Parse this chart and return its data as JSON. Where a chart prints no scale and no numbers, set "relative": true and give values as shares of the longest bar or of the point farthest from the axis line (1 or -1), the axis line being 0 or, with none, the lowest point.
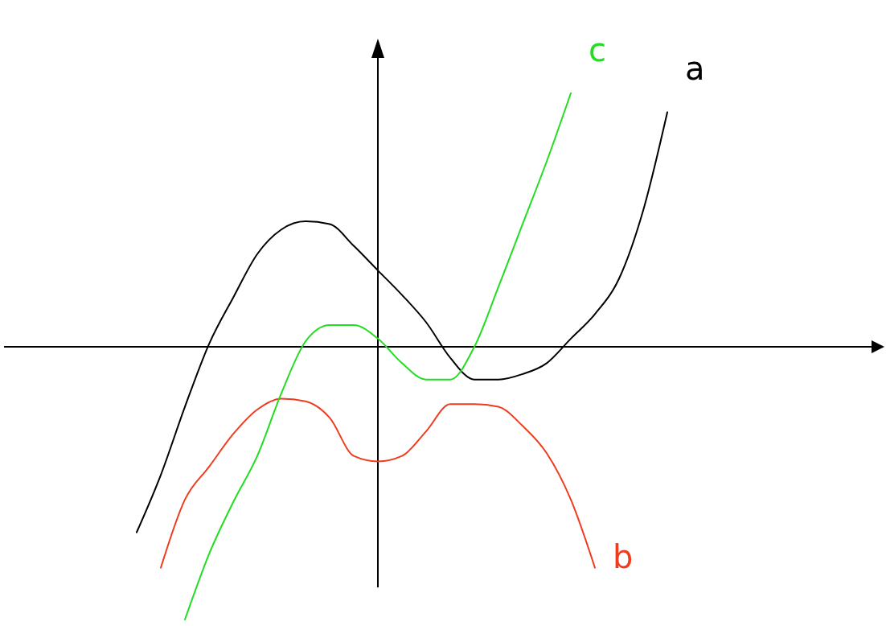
{
  "chart_data": {
    "type": "line",
    "relative": true,
    "categories": [
      null,
      null,
      null,
      null,
      null,
      null,
      null,
      null,
      null,
      null,
      null,
      null,
      null,
      null,
      null,
      null,
      null,
      null,
      null,
      null,
      null,
      null,
      null,
      null,
      null,
      null,
      null,
      null,
      null,
      null,
      null,
      null,
      null,
      null,
      null,
      null,
      null
    ],
    "series": [
      {
        "name": "a",
        "color": "#000000",
        "values": [
          null,
          null,
          null,
          null,
          null,
          -0.68,
          -0.47,
          -0.22,
          0.01,
          0.18,
          0.34,
          0.43,
          0.46,
          0.45,
          0.37,
          0.28,
          0.19,
          0.09,
          -0.04,
          -0.12,
          -0.12,
          -0.1,
          -0.06,
          0.03,
          0.12,
          0.25,
          0.5,
          0.86,
          null,
          null,
          null,
          null,
          null,
          null,
          null,
          null,
          null
        ]
      },
      {
        "name": "b",
        "color": "#f03c1e",
        "values": [
          null,
          null,
          null,
          null,
          null,
          null,
          -0.81,
          -0.56,
          -0.44,
          -0.32,
          -0.23,
          -0.19,
          -0.2,
          -0.26,
          -0.4,
          -0.42,
          -0.4,
          -0.31,
          -0.21,
          -0.21,
          -0.22,
          -0.29,
          -0.39,
          -0.56,
          -0.81,
          null,
          null,
          null,
          null,
          null,
          null,
          null,
          null,
          null,
          null,
          null,
          null
        ]
      },
      {
        "name": "c",
        "color": "#22dd22",
        "values": [
          null,
          null,
          null,
          null,
          null,
          null,
          null,
          -1,
          -0.76,
          -0.57,
          -0.4,
          -0.17,
          0.02,
          0.08,
          0.08,
          0.03,
          -0.06,
          -0.12,
          -0.12,
          0.0,
          0.22,
          0.45,
          0.68,
          0.93,
          null,
          null,
          null,
          null,
          null,
          null,
          null,
          null,
          null,
          null,
          null,
          null,
          null
        ]
      }
    ]
  }
}
